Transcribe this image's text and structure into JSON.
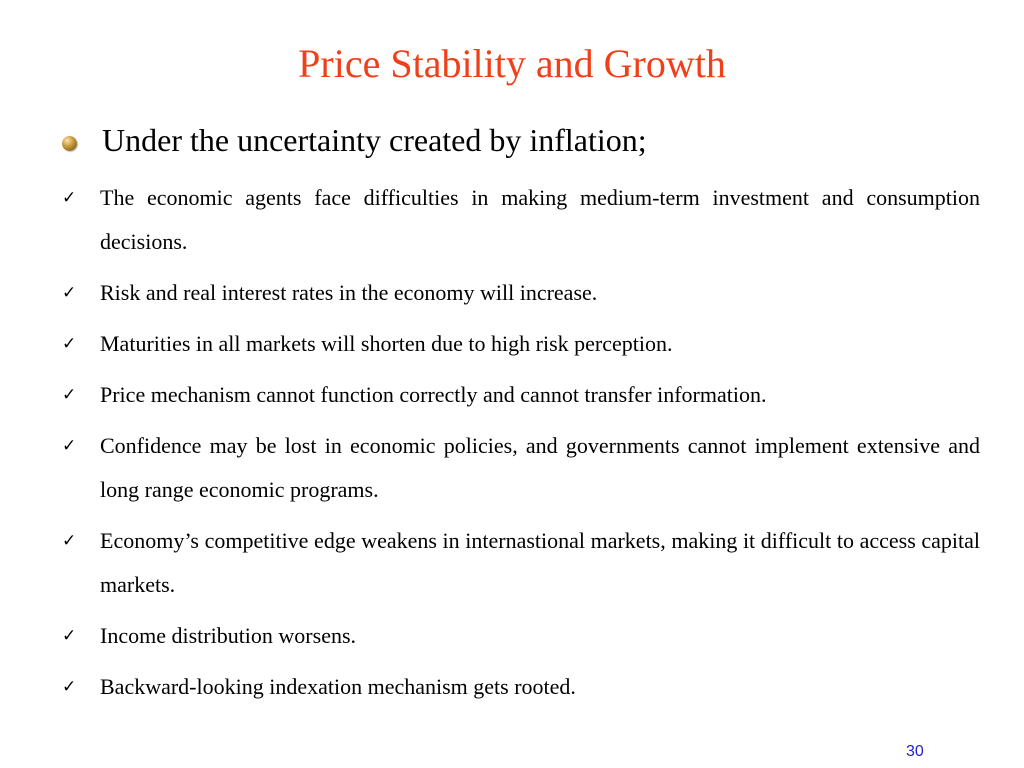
{
  "slide": {
    "title": "Price Stability and Growth",
    "main_bullet": "Under the uncertainty created by inflation;",
    "check_symbol": "✓",
    "points": [
      "The economic agents face difficulties in making medium-term investment and consumption decisions.",
      "Risk and real interest rates in the economy will increase.",
      "Maturities in all markets will shorten due to high risk perception.",
      "Price mechanism cannot function correctly and cannot transfer information.",
      "Confidence may be lost in economic policies, and governments cannot implement extensive and long range economic programs.",
      "Economy’s competitive edge weakens in internastional markets, making it difficult to access capital markets.",
      "Income distribution worsens.",
      "Backward-looking indexation mechanism gets rooted."
    ],
    "page_number": "30"
  },
  "colors": {
    "title": "#f0401a",
    "text": "#000000",
    "page_number": "#1f1fd0",
    "bullet_orb": "#b8892e"
  },
  "icons": {
    "main_bullet": "gold-orb-icon",
    "list_bullet": "checkmark-icon"
  }
}
